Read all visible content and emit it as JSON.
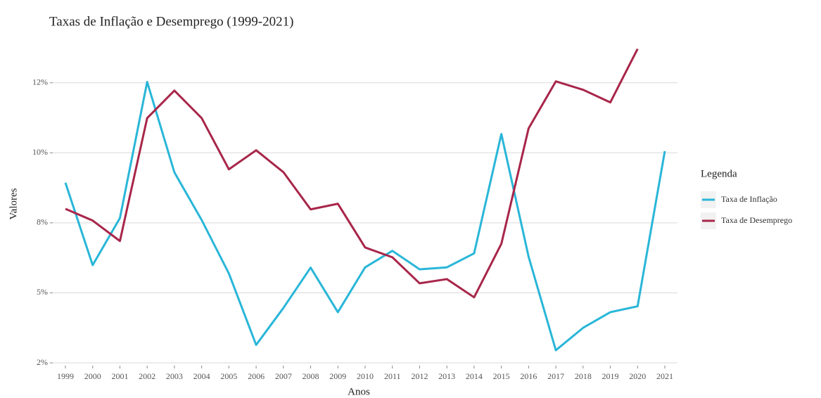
{
  "chart_data": {
    "type": "line",
    "title": "Taxas de Inflação e Desemprego (1999-2021)",
    "x_label": "Anos",
    "y_label": "Valores",
    "legend_title": "Legenda",
    "categories": [
      "1999",
      "2000",
      "2001",
      "2002",
      "2003",
      "2004",
      "2005",
      "2006",
      "2007",
      "2008",
      "2009",
      "2010",
      "2011",
      "2012",
      "2013",
      "2014",
      "2015",
      "2016",
      "2017",
      "2018",
      "2019",
      "2020",
      "2021"
    ],
    "series": [
      {
        "name": "Taxa de Inflação",
        "color": "#29b6d8",
        "values": [
          8.93,
          5.99,
          7.67,
          12.53,
          9.3,
          7.6,
          5.69,
          3.14,
          4.46,
          5.9,
          4.31,
          5.91,
          6.5,
          5.84,
          5.91,
          6.41,
          10.67,
          6.29,
          2.95,
          3.75,
          4.31,
          4.52,
          10.06
        ]
      },
      {
        "name": "Taxa de Desemprego",
        "color": "#a8264a",
        "values": [
          8.0,
          7.58,
          6.85,
          11.24,
          12.22,
          11.24,
          9.41,
          10.09,
          9.31,
          7.98,
          8.18,
          6.62,
          6.27,
          5.34,
          5.49,
          4.84,
          6.75,
          10.87,
          12.55,
          12.25,
          11.8,
          13.71,
          null
        ]
      }
    ],
    "ylim": [
      2.4,
      14.2
    ],
    "yticks": [
      {
        "value": 2.5,
        "label": "2%"
      },
      {
        "value": 5,
        "label": "5%"
      },
      {
        "value": 7.5,
        "label": "8%"
      },
      {
        "value": 10,
        "label": "10%"
      },
      {
        "value": 12.5,
        "label": "12%"
      }
    ],
    "grid": true,
    "legend_position": "right"
  }
}
